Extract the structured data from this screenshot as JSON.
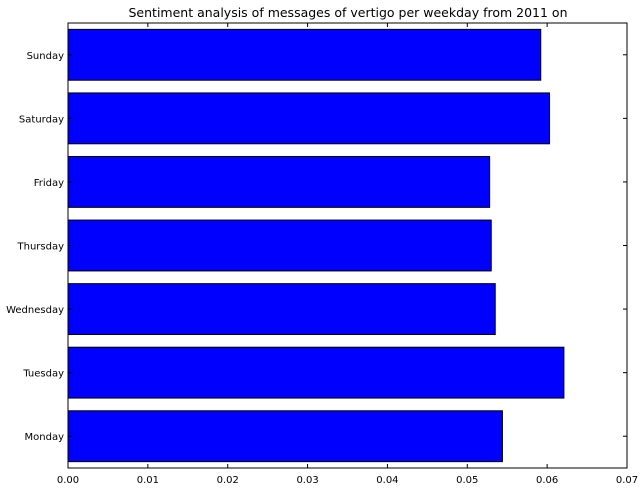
{
  "chart_data": {
    "type": "bar",
    "orientation": "horizontal",
    "title": "Sentiment analysis of messages of vertigo per weekday from 2011 on",
    "xlabel": "",
    "ylabel": "",
    "categories": [
      "Sunday",
      "Saturday",
      "Friday",
      "Thursday",
      "Wednesday",
      "Tuesday",
      "Monday"
    ],
    "values": [
      0.0592,
      0.0603,
      0.0528,
      0.053,
      0.0535,
      0.0621,
      0.0544
    ],
    "xlim": [
      0.0,
      0.07
    ],
    "xticks": [
      "0.00",
      "0.01",
      "0.02",
      "0.03",
      "0.04",
      "0.05",
      "0.06",
      "0.07"
    ],
    "grid": false,
    "bar_color": "#0000ff",
    "edge_color": "#000000"
  }
}
